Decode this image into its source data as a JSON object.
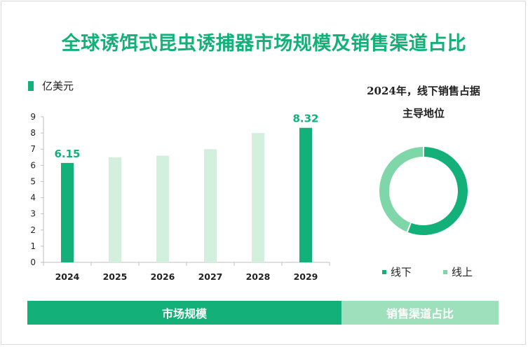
{
  "title": "全球诱饵式昆虫诱捕器市场规模及销售渠道占比",
  "colors": {
    "accent": "#13b07a",
    "light": "#d3f0df",
    "online": "#7fd6a8"
  },
  "chart_data": [
    {
      "type": "bar",
      "legend_label": "亿美元",
      "categories": [
        "2024",
        "2025",
        "2026",
        "2027",
        "2028",
        "2029"
      ],
      "values": [
        6.15,
        6.5,
        6.6,
        7.0,
        8.0,
        8.32
      ],
      "data_labels": [
        "6.15",
        "",
        "",
        "",
        "",
        "8.32"
      ],
      "highlight": [
        true,
        false,
        false,
        false,
        false,
        true
      ],
      "yticks": [
        "0",
        "1",
        "2",
        "3",
        "4",
        "5",
        "6",
        "7",
        "8",
        "9"
      ],
      "ylim": [
        0,
        9
      ]
    },
    {
      "type": "pie",
      "title_line1": "2024年，线下销售占据",
      "title_line2": "主导地位",
      "slices": [
        {
          "name": "线下",
          "value": 56,
          "color": "#13b07a"
        },
        {
          "name": "线上",
          "value": 44,
          "color": "#7fd6a8"
        }
      ]
    }
  ],
  "footer": {
    "left_label": "市场规模",
    "right_label": "销售渠道占比"
  }
}
